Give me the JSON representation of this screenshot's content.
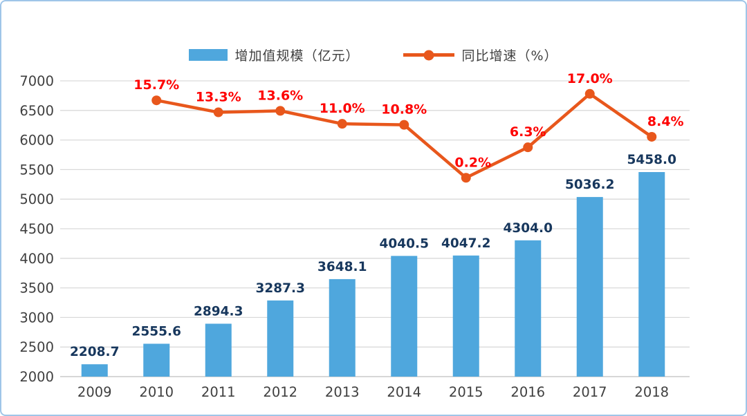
{
  "chart_data": {
    "type": "bar+line",
    "categories": [
      "2009",
      "2010",
      "2011",
      "2012",
      "2013",
      "2014",
      "2015",
      "2016",
      "2017",
      "2018"
    ],
    "series": [
      {
        "name": "增加值规模（亿元）",
        "type": "bar",
        "color": "#4FA7DD",
        "label_color": "#17375D",
        "values": [
          2208.7,
          2555.6,
          2894.3,
          3287.3,
          3648.1,
          4040.5,
          4047.2,
          4304.0,
          5036.2,
          5458.0
        ]
      },
      {
        "name": "同比增速（%）",
        "type": "line",
        "color": "#E8571C",
        "label_color": "#FE0000",
        "values": [
          null,
          15.7,
          13.3,
          13.6,
          11.0,
          10.8,
          0.2,
          6.3,
          17.0,
          8.4
        ]
      }
    ],
    "axes": {
      "y1lim": [
        2000,
        7000
      ],
      "y1_tick_step": 500,
      "y1_ticks": [
        "2000",
        "2500",
        "3000",
        "3500",
        "4000",
        "4500",
        "5000",
        "5500",
        "6000",
        "6500",
        "7000"
      ],
      "y2lim": [
        -39.6,
        19.6
      ],
      "y2_axis_visible": false,
      "grid": "horizontal"
    },
    "legend_position": "top-center",
    "colors": {
      "grid": "#D9D9D9",
      "baseline": "#BFBFBF",
      "axis_text": "#3F3F3F",
      "frame_border": "#9FC5E8"
    }
  }
}
